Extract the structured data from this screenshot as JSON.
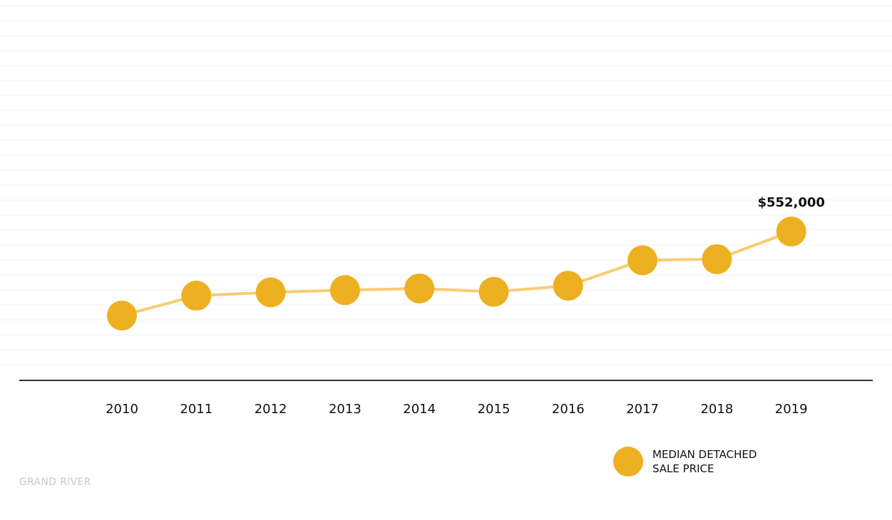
{
  "colors": {
    "marker": "#ECB020",
    "line": "#F8CC73",
    "axis": "#333333",
    "gridline": "#f2f2f2",
    "source_text": "#c8c8c8"
  },
  "chart_data": {
    "type": "line",
    "categories": [
      "2010",
      "2011",
      "2012",
      "2013",
      "2014",
      "2015",
      "2016",
      "2017",
      "2018",
      "2019"
    ],
    "series": [
      {
        "name": "MEDIAN DETACHED SALE PRICE",
        "values": [
          400000,
          436000,
          442000,
          446000,
          449000,
          443000,
          454000,
          500000,
          502000,
          552000
        ]
      }
    ],
    "ylim": [
      0,
      1000000
    ],
    "annotations": [
      {
        "category": "2019",
        "label": "$552,000"
      }
    ],
    "grid": true,
    "legend_position": "bottom-right",
    "xlabel": "",
    "ylabel": ""
  },
  "legend": {
    "label": "MEDIAN DETACHED SALE PRICE"
  },
  "source": "GRAND RIVER"
}
